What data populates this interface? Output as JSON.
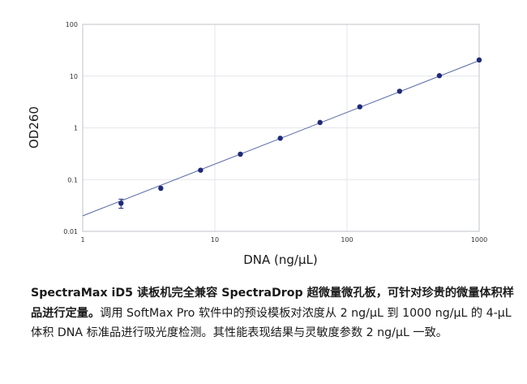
{
  "chart_data": {
    "type": "scatter",
    "xscale": "log",
    "yscale": "log",
    "xlabel": "DNA (ng/µL)",
    "ylabel": "OD260",
    "xlim": [
      1,
      1000
    ],
    "ylim": [
      0.01,
      100
    ],
    "x_ticks": [
      {
        "value": 1,
        "label": "1"
      },
      {
        "value": 10,
        "label": "10"
      },
      {
        "value": 100,
        "label": "100"
      },
      {
        "value": 1000,
        "label": "1000"
      }
    ],
    "y_ticks": [
      {
        "value": 0.01,
        "label": "0.01"
      },
      {
        "value": 0.1,
        "label": "0.1"
      },
      {
        "value": 1,
        "label": "1"
      },
      {
        "value": 10,
        "label": "10"
      },
      {
        "value": 100,
        "label": "100"
      }
    ],
    "grid": true,
    "series": [
      {
        "x": [
          1.95,
          3.9,
          7.8,
          15.6,
          31.25,
          62.5,
          125,
          250,
          500,
          1000
        ],
        "y": [
          0.035,
          0.068,
          0.152,
          0.31,
          0.63,
          1.27,
          2.55,
          5.1,
          10.2,
          20.5
        ],
        "error": [
          0.007,
          0,
          0,
          0,
          0,
          0,
          0,
          0,
          0,
          0
        ]
      }
    ],
    "fit_line": {
      "slope": 1,
      "intercept": -1.7,
      "x_range": [
        1,
        1000
      ]
    },
    "colors": {
      "points": "#1f2a7a",
      "line": "#5a6aa6",
      "grid": "#e4e6ea",
      "frame": "#bfc3c9"
    }
  },
  "caption": {
    "bold": "SpectraMax iD5 读板机完全兼容 SpectraDrop 超微量微孔板，可针对珍贵的微量体积样品进行定量。",
    "normal": "调用 SoftMax Pro 软件中的预设模板对浓度从 2 ng/µL 到 1000 ng/µL 的 4-µL 体积 DNA 标准品进行吸光度检测。其性能表现结果与灵敏度参数 2 ng/µL 一致。"
  }
}
